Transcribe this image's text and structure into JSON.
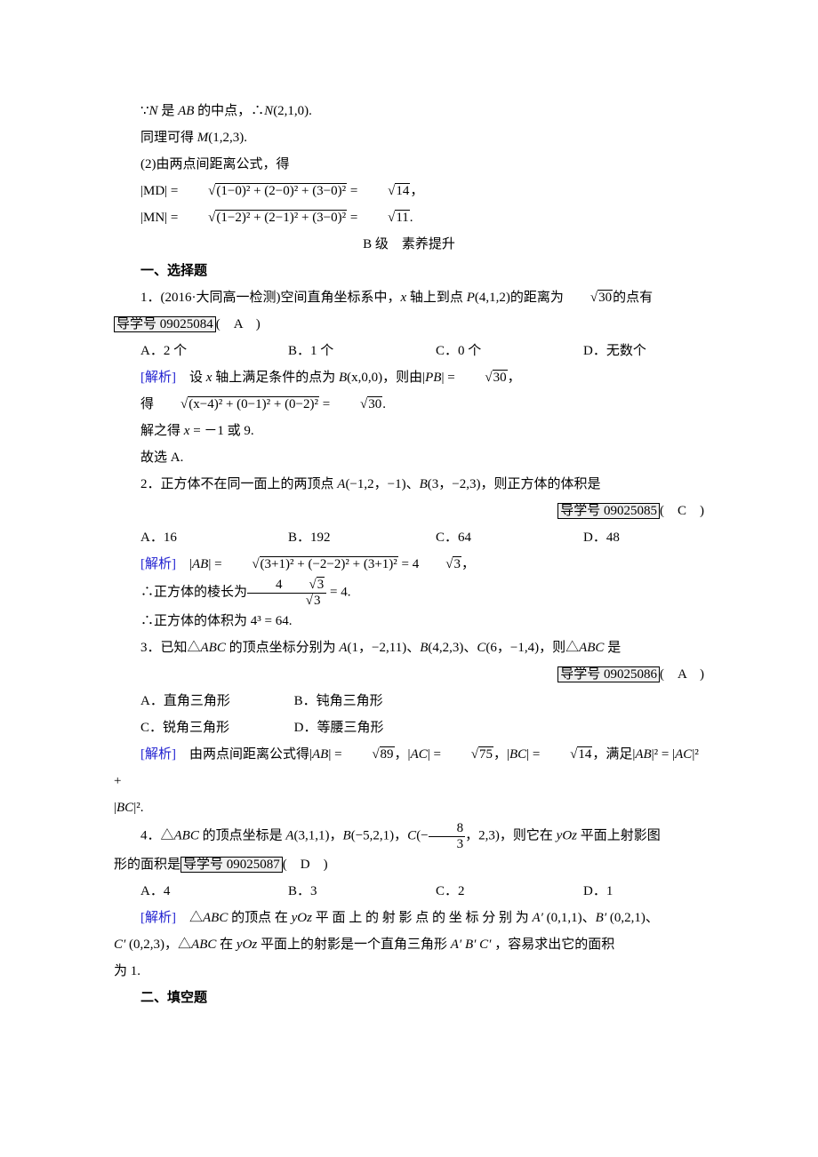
{
  "intro": {
    "l1_pre": "∵",
    "l1_mid": "N",
    "l1_text": " 是 ",
    "l1_ab": "AB",
    "l1_text2": " 的中点，∴",
    "l1_n": "N",
    "l1_val": "(2,1,0).",
    "l2_pre": "同理可得 ",
    "l2_m": "M",
    "l2_val": "(1,2,3).",
    "l3": "(2)由两点间距离公式，得",
    "md_label": "|MD| = ",
    "md_expr": "(1−0)² + (2−0)² + (3−0)²",
    "md_eq": " = ",
    "md_res": "14",
    "md_end": "，",
    "mn_label": "|MN| = ",
    "mn_expr": "(1−2)² + (2−1)² + (3−0)²",
    "mn_eq": " = ",
    "mn_res": "11",
    "mn_end": "."
  },
  "level_header": "B 级　素养提升",
  "section1": "一、选择题",
  "q1": {
    "stem_a": "1．(2016·大同高一检测)空间直角坐标系中，",
    "stem_axis": "x",
    "stem_b": " 轴上到点 ",
    "stem_p": "P",
    "stem_c": "(4,1,2)的距离为",
    "stem_sqrt": "30",
    "stem_d": "的点有",
    "guide": "导学号 09025084",
    "ans": "(　A　)",
    "opts": {
      "a": "A．2 个",
      "b": "B．1 个",
      "c": "C．0 个",
      "d": "D．无数个"
    },
    "sol": {
      "label": "[解析]",
      "l1a": "　设 ",
      "l1x": "x",
      "l1b": " 轴上满足条件的点为 ",
      "l1bp": "B",
      "l1c": "(x,0,0)，则由|",
      "l1pb": "PB",
      "l1d": "| = ",
      "l1sqrt": "30",
      "l1e": "，",
      "l2a": "得",
      "l2expr": "(x−4)² + (0−1)² + (0−2)²",
      "l2b": " = ",
      "l2sqrt": "30",
      "l2c": ".",
      "l3a": "解之得 ",
      "l3x": "x",
      "l3b": " = －1 或 9.",
      "l4": "故选 A."
    }
  },
  "q2": {
    "stem_a": "2．正方体不在同一面上的两顶点 ",
    "stem_pa": "A",
    "stem_b": "(−1,2，−1)、",
    "stem_pb": "B",
    "stem_c": "(3，−2,3)，则正方体的体积是",
    "guide": "导学号 09025085",
    "ans": "(　C　)",
    "opts": {
      "a": "A．16",
      "b": "B．192",
      "c": "C．64",
      "d": "D．48"
    },
    "sol": {
      "label": "[解析]",
      "l1a": "　|",
      "l1ab": "AB",
      "l1b": "| = ",
      "l1expr": "(3+1)² + (−2−2)² + (3+1)²",
      "l1c": " = 4",
      "l1sqrt": "3",
      "l1d": "，",
      "l2a": "∴正方体的棱长为",
      "l2num_a": "4",
      "l2num_sqrt": "3",
      "l2den_sqrt": "3",
      "l2b": " = 4.",
      "l3": "∴正方体的体积为 4³ = 64."
    }
  },
  "q3": {
    "stem_a": "3．已知△",
    "stem_abc": "ABC",
    "stem_b": " 的顶点坐标分别为 ",
    "stem_pa": "A",
    "stem_c": "(1，−2,11)、",
    "stem_pb": "B",
    "stem_d": "(4,2,3)、",
    "stem_pc": "C",
    "stem_e": "(6，−1,4)，则△",
    "stem_abc2": "ABC",
    "stem_f": " 是",
    "guide": "导学号 09025086",
    "ans": "(　A　)",
    "opts": {
      "a": "A．直角三角形",
      "b": "B．钝角三角形",
      "c": "C．锐角三角形",
      "d": "D．等腰三角形"
    },
    "sol": {
      "label": "[解析]",
      "l1a": "　由两点间距离公式得|",
      "l1ab": "AB",
      "l1b": "| = ",
      "l1s1": "89",
      "l1c": "，|",
      "l1ac": "AC",
      "l1d": "| = ",
      "l1s2": "75",
      "l1e": "，|",
      "l1bc": "BC",
      "l1f": "| = ",
      "l1s3": "14",
      "l1g": "，满足|",
      "l1ab2": "AB",
      "l1h": "|² = |",
      "l1ac2": "AC",
      "l1i": "|² +",
      "l2a": "|",
      "l2bc": "BC",
      "l2b": "|²."
    }
  },
  "q4": {
    "stem_a": "4．△",
    "stem_abc": "ABC",
    "stem_b": " 的顶点坐标是 ",
    "stem_pa": "A",
    "stem_c": "(3,1,1)，",
    "stem_pb": "B",
    "stem_d": "(−5,2,1)，",
    "stem_pc": "C",
    "stem_e": "(−",
    "stem_fnum": "8",
    "stem_fden": "3",
    "stem_f": "，2,3)，则它在 ",
    "stem_yoz": "yOz",
    "stem_g": " 平面上射影图",
    "stem_h": "形的面积是",
    "guide": "导学号 09025087",
    "ans": "(　D　)",
    "opts": {
      "a": "A．4",
      "b": "B．3",
      "c": "C．2",
      "d": "D．1"
    },
    "sol": {
      "label": "[解析]",
      "l1a": "　△",
      "l1abc": "ABC",
      "l1b": " 的顶点 在 ",
      "l1yoz": "yOz",
      "l1c": " 平 面 上 的 射 影 点 的 坐 标 分 别 为 ",
      "l1ap": "A′",
      "l1d": " (0,1,1)、",
      "l1bp": "B′",
      "l1e": " (0,2,1)、",
      "l2cp": "C′",
      "l2a": " (0,2,3)，△",
      "l2abc": "ABC",
      "l2b": " 在 ",
      "l2yoz": "yOz",
      "l2c": " 平面上的射影是一个直角三角形 ",
      "l2ap": "A′",
      "l2bp2": "B′",
      "l2cp2": "C′",
      "l2d": " ，容易求出它的面积",
      "l3": "为 1."
    }
  },
  "section2": "二、填空题"
}
